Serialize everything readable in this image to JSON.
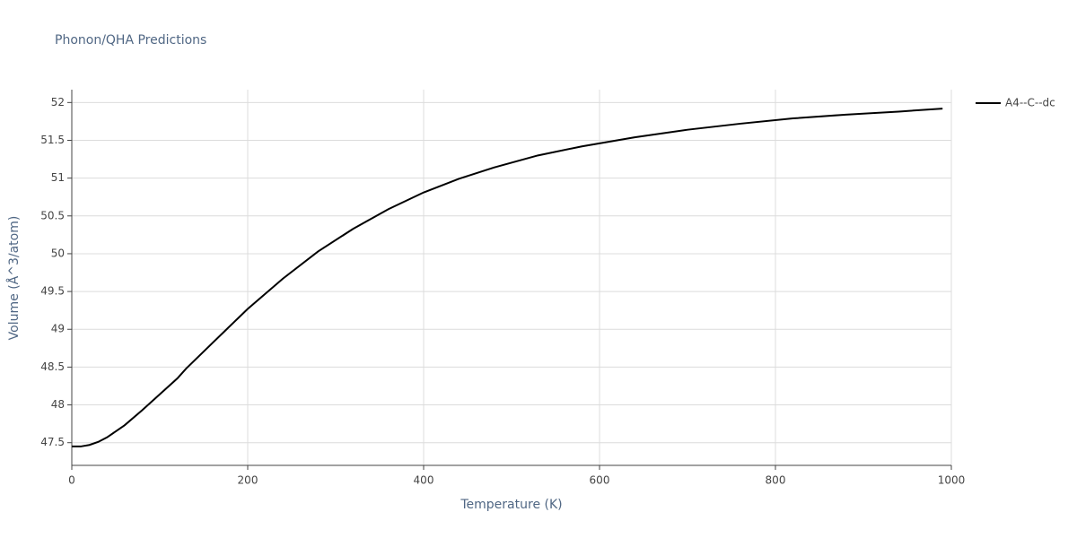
{
  "chart_data": {
    "type": "line",
    "title": "Phonon/QHA Predictions",
    "x_label": "Temperature (K)",
    "y_label": "Volume (Å^3/atom)",
    "x": [
      0,
      10,
      20,
      30,
      40,
      60,
      80,
      100,
      120,
      130,
      160,
      200,
      240,
      280,
      320,
      360,
      400,
      440,
      480,
      530,
      580,
      640,
      700,
      760,
      820,
      880,
      940,
      990
    ],
    "series": [
      {
        "name": "A4--C--dc",
        "color": "#000000",
        "values": [
          47.45,
          47.45,
          47.47,
          47.51,
          47.57,
          47.73,
          47.93,
          48.14,
          48.35,
          48.48,
          48.82,
          49.27,
          49.67,
          50.03,
          50.33,
          50.59,
          50.81,
          50.99,
          51.14,
          51.3,
          51.42,
          51.54,
          51.64,
          51.72,
          51.79,
          51.84,
          51.88,
          51.92
        ]
      }
    ],
    "xlim": [
      0,
      1000
    ],
    "xticks": [
      0,
      200,
      400,
      600,
      800,
      1000
    ],
    "ylim": [
      47.2,
      52.17
    ],
    "yticks": [
      47.5,
      48,
      48.5,
      49,
      49.5,
      50,
      50.5,
      51,
      51.5,
      52
    ],
    "grid": true,
    "legend": "right"
  }
}
